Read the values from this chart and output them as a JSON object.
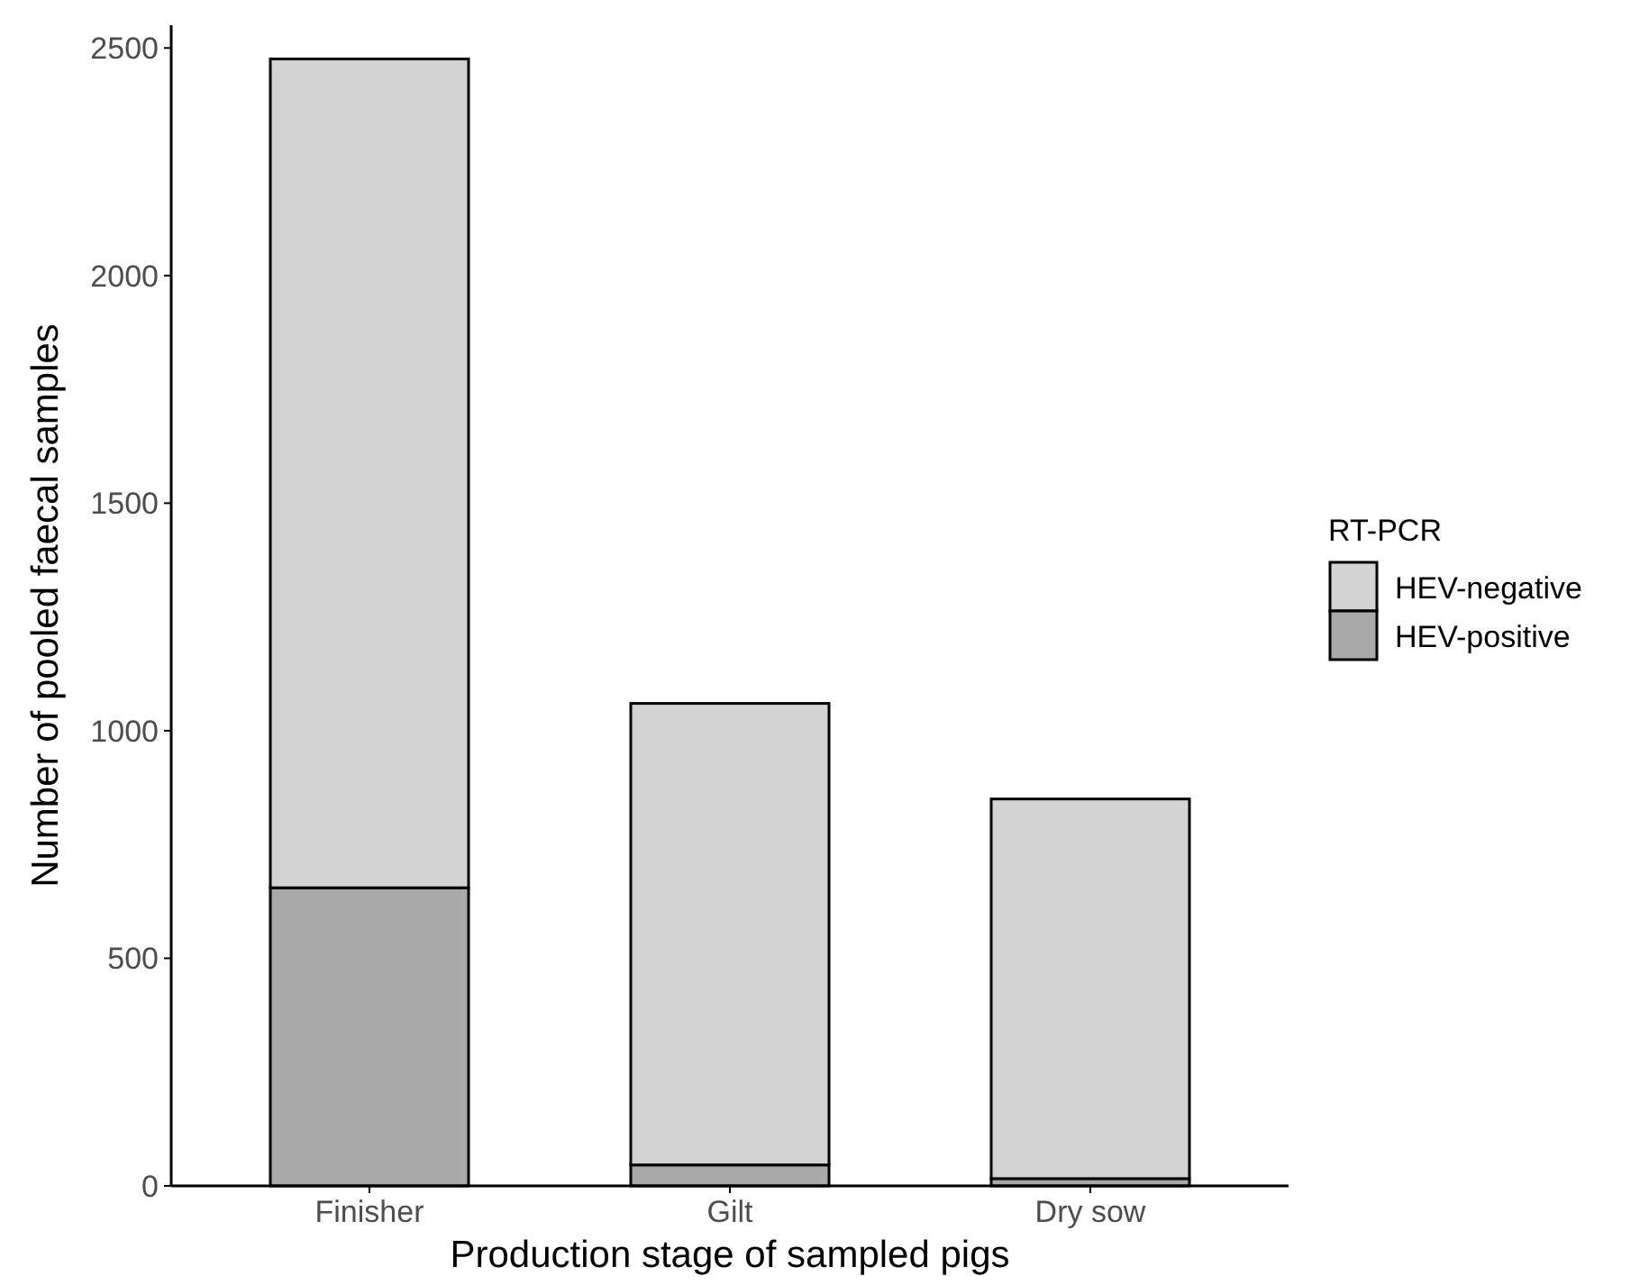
{
  "chart_data": {
    "type": "bar",
    "xlabel": "Production stage of sampled pigs",
    "ylabel": "Number of pooled faecal samples",
    "legend_title": "RT-PCR",
    "categories": [
      "Finisher",
      "Gilt",
      "Dry sow"
    ],
    "stacked": true,
    "legend": "right",
    "series": [
      {
        "name": "HEV-positive",
        "color": "#a9a9a9",
        "values": [
          655,
          46,
          16
        ]
      },
      {
        "name": "HEV-negative",
        "color": "#d3d3d3",
        "values": [
          1821,
          1014,
          834
        ]
      }
    ],
    "ylim": [
      0,
      2550
    ],
    "yticks": [
      0,
      500,
      1000,
      1500,
      2000,
      2500
    ],
    "grid": false
  }
}
